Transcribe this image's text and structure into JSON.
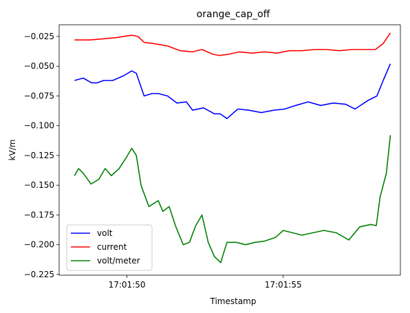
{
  "chart_data": {
    "type": "line",
    "title": "orange_cap_off",
    "xlabel": "Timestamp",
    "ylabel": "kV/m",
    "xlim": [
      47.83,
      58.75
    ],
    "ylim": [
      -0.2256,
      -0.0152
    ],
    "x_ticks": [
      {
        "value": 50,
        "label": "17:01:50"
      },
      {
        "value": 55,
        "label": "17:01:55"
      }
    ],
    "y_ticks": [
      {
        "value": -0.025,
        "label": "−0.025"
      },
      {
        "value": -0.05,
        "label": "−0.050"
      },
      {
        "value": -0.075,
        "label": "−0.075"
      },
      {
        "value": -0.1,
        "label": "−0.100"
      },
      {
        "value": -0.125,
        "label": "−0.125"
      },
      {
        "value": -0.15,
        "label": "−0.150"
      },
      {
        "value": -0.175,
        "label": "−0.175"
      },
      {
        "value": -0.2,
        "label": "−0.200"
      },
      {
        "value": -0.225,
        "label": "−0.225"
      }
    ],
    "grid": false,
    "legend_position": "lower-left",
    "series": [
      {
        "name": "volt",
        "color": "#0000ff",
        "points": [
          [
            48.32,
            -0.062
          ],
          [
            48.6,
            -0.06
          ],
          [
            48.87,
            -0.064
          ],
          [
            49.05,
            -0.064
          ],
          [
            49.25,
            -0.062
          ],
          [
            49.54,
            -0.062
          ],
          [
            49.9,
            -0.058
          ],
          [
            50.15,
            -0.054
          ],
          [
            50.3,
            -0.056
          ],
          [
            50.55,
            -0.075
          ],
          [
            50.8,
            -0.073
          ],
          [
            51.0,
            -0.073
          ],
          [
            51.3,
            -0.075
          ],
          [
            51.6,
            -0.081
          ],
          [
            51.9,
            -0.08
          ],
          [
            52.1,
            -0.087
          ],
          [
            52.45,
            -0.085
          ],
          [
            52.8,
            -0.09
          ],
          [
            52.98,
            -0.09
          ],
          [
            53.2,
            -0.094
          ],
          [
            53.55,
            -0.086
          ],
          [
            53.9,
            -0.087
          ],
          [
            54.3,
            -0.089
          ],
          [
            54.7,
            -0.087
          ],
          [
            55.05,
            -0.086
          ],
          [
            55.4,
            -0.083
          ],
          [
            55.8,
            -0.08
          ],
          [
            56.2,
            -0.083
          ],
          [
            56.6,
            -0.081
          ],
          [
            57.0,
            -0.082
          ],
          [
            57.3,
            -0.086
          ],
          [
            57.7,
            -0.079
          ],
          [
            58.0,
            -0.075
          ],
          [
            58.2,
            -0.062
          ],
          [
            58.43,
            -0.048
          ]
        ]
      },
      {
        "name": "current",
        "color": "#ff0000",
        "points": [
          [
            48.32,
            -0.028
          ],
          [
            48.8,
            -0.028
          ],
          [
            49.25,
            -0.027
          ],
          [
            49.65,
            -0.026
          ],
          [
            50.15,
            -0.024
          ],
          [
            50.35,
            -0.025
          ],
          [
            50.55,
            -0.03
          ],
          [
            50.85,
            -0.031
          ],
          [
            51.3,
            -0.033
          ],
          [
            51.7,
            -0.037
          ],
          [
            52.1,
            -0.038
          ],
          [
            52.4,
            -0.036
          ],
          [
            52.75,
            -0.04
          ],
          [
            52.95,
            -0.041
          ],
          [
            53.25,
            -0.04
          ],
          [
            53.6,
            -0.038
          ],
          [
            54.0,
            -0.039
          ],
          [
            54.4,
            -0.038
          ],
          [
            54.8,
            -0.039
          ],
          [
            55.2,
            -0.037
          ],
          [
            55.6,
            -0.037
          ],
          [
            56.0,
            -0.036
          ],
          [
            56.4,
            -0.036
          ],
          [
            56.8,
            -0.037
          ],
          [
            57.2,
            -0.036
          ],
          [
            57.6,
            -0.036
          ],
          [
            57.95,
            -0.036
          ],
          [
            58.2,
            -0.031
          ],
          [
            58.43,
            -0.022
          ]
        ]
      },
      {
        "name": "volt/meter",
        "color": "#008000",
        "points": [
          [
            48.32,
            -0.142
          ],
          [
            48.45,
            -0.136
          ],
          [
            48.6,
            -0.14
          ],
          [
            48.85,
            -0.149
          ],
          [
            49.1,
            -0.145
          ],
          [
            49.3,
            -0.136
          ],
          [
            49.5,
            -0.142
          ],
          [
            49.75,
            -0.136
          ],
          [
            49.95,
            -0.128
          ],
          [
            50.15,
            -0.119
          ],
          [
            50.3,
            -0.125
          ],
          [
            50.45,
            -0.15
          ],
          [
            50.7,
            -0.168
          ],
          [
            51.0,
            -0.163
          ],
          [
            51.15,
            -0.172
          ],
          [
            51.35,
            -0.168
          ],
          [
            51.55,
            -0.184
          ],
          [
            51.8,
            -0.2
          ],
          [
            52.0,
            -0.198
          ],
          [
            52.2,
            -0.184
          ],
          [
            52.4,
            -0.175
          ],
          [
            52.6,
            -0.198
          ],
          [
            52.8,
            -0.21
          ],
          [
            53.0,
            -0.215
          ],
          [
            53.2,
            -0.198
          ],
          [
            53.5,
            -0.198
          ],
          [
            53.8,
            -0.2
          ],
          [
            54.1,
            -0.198
          ],
          [
            54.4,
            -0.197
          ],
          [
            54.75,
            -0.194
          ],
          [
            55.0,
            -0.188
          ],
          [
            55.3,
            -0.19
          ],
          [
            55.6,
            -0.192
          ],
          [
            55.95,
            -0.19
          ],
          [
            56.3,
            -0.188
          ],
          [
            56.7,
            -0.19
          ],
          [
            57.1,
            -0.196
          ],
          [
            57.45,
            -0.185
          ],
          [
            57.8,
            -0.183
          ],
          [
            57.98,
            -0.184
          ],
          [
            58.1,
            -0.16
          ],
          [
            58.3,
            -0.14
          ],
          [
            58.43,
            -0.108
          ]
        ]
      }
    ]
  }
}
